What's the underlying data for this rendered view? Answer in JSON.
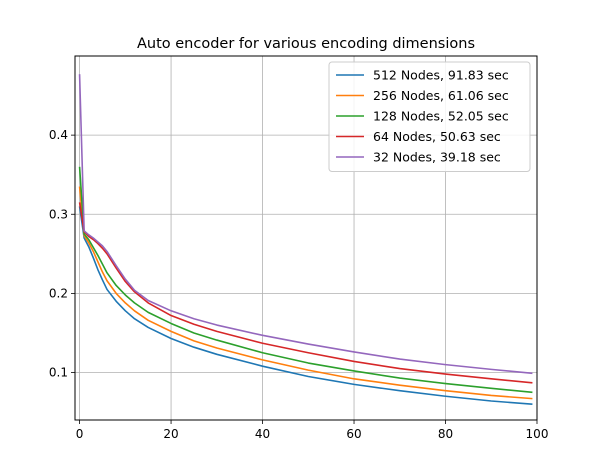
{
  "chart_data": {
    "type": "line",
    "title": "Auto encoder for various encoding dimensions",
    "xlabel": "",
    "ylabel": "",
    "xlim": [
      -1,
      100
    ],
    "ylim": [
      0.04,
      0.5
    ],
    "x_ticks": [
      0,
      20,
      40,
      60,
      80,
      100
    ],
    "y_ticks": [
      0.1,
      0.2,
      0.3,
      0.4
    ],
    "x_tick_labels": [
      "0",
      "20",
      "40",
      "60",
      "80",
      "100"
    ],
    "y_tick_labels": [
      "0.1",
      "0.2",
      "0.3",
      "0.4"
    ],
    "grid": true,
    "legend_position": "top-right",
    "x": [
      0,
      1,
      2,
      3,
      4,
      5,
      6,
      8,
      10,
      12,
      15,
      20,
      25,
      30,
      40,
      50,
      60,
      70,
      80,
      90,
      99
    ],
    "series": [
      {
        "name": "512 Nodes, 91.83 sec",
        "color": "#1f77b4",
        "values": [
          0.31,
          0.27,
          0.259,
          0.245,
          0.23,
          0.217,
          0.205,
          0.19,
          0.178,
          0.168,
          0.157,
          0.143,
          0.132,
          0.123,
          0.108,
          0.095,
          0.085,
          0.077,
          0.07,
          0.064,
          0.06
        ]
      },
      {
        "name": "256 Nodes, 61.06 sec",
        "color": "#ff7f0e",
        "values": [
          0.335,
          0.273,
          0.264,
          0.253,
          0.24,
          0.227,
          0.216,
          0.2,
          0.188,
          0.178,
          0.166,
          0.152,
          0.14,
          0.131,
          0.116,
          0.103,
          0.092,
          0.084,
          0.077,
          0.071,
          0.067
        ]
      },
      {
        "name": "128 Nodes, 52.05 sec",
        "color": "#2ca02c",
        "values": [
          0.36,
          0.275,
          0.268,
          0.258,
          0.248,
          0.237,
          0.226,
          0.21,
          0.198,
          0.188,
          0.176,
          0.162,
          0.15,
          0.141,
          0.125,
          0.112,
          0.102,
          0.093,
          0.086,
          0.08,
          0.075
        ]
      },
      {
        "name": "64 Nodes, 50.63 sec",
        "color": "#d62728",
        "values": [
          0.315,
          0.278,
          0.272,
          0.268,
          0.263,
          0.257,
          0.25,
          0.232,
          0.215,
          0.202,
          0.188,
          0.172,
          0.161,
          0.152,
          0.137,
          0.125,
          0.114,
          0.105,
          0.098,
          0.092,
          0.087
        ]
      },
      {
        "name": "32 Nodes, 39.18 sec",
        "color": "#9467bd",
        "values": [
          0.477,
          0.279,
          0.274,
          0.27,
          0.265,
          0.26,
          0.253,
          0.235,
          0.218,
          0.204,
          0.191,
          0.178,
          0.168,
          0.16,
          0.147,
          0.136,
          0.126,
          0.117,
          0.11,
          0.104,
          0.099
        ]
      }
    ]
  }
}
